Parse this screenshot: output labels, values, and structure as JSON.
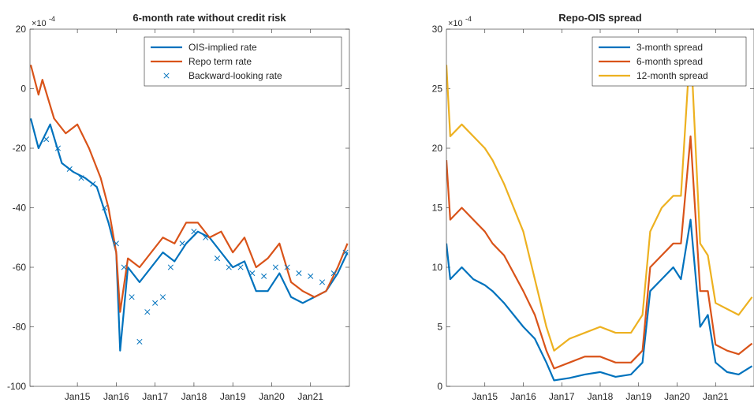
{
  "chart_data": [
    {
      "type": "line",
      "title": "6-month rate without credit risk",
      "y_exponent": {
        "base": "×10",
        "power": "-4"
      },
      "xlim": [
        2013.78,
        2022.0
      ],
      "xticks": [
        {
          "value": 2015,
          "label": "Jan15"
        },
        {
          "value": 2016,
          "label": "Jan16"
        },
        {
          "value": 2017,
          "label": "Jan17"
        },
        {
          "value": 2018,
          "label": "Jan18"
        },
        {
          "value": 2019,
          "label": "Jan19"
        },
        {
          "value": 2020,
          "label": "Jan20"
        },
        {
          "value": 2021,
          "label": "Jan21"
        }
      ],
      "ylim": [
        -100,
        20
      ],
      "yticks": [
        -100,
        -80,
        -60,
        -40,
        -20,
        0,
        20
      ],
      "legend": "top-right",
      "series": [
        {
          "name": "OIS-implied rate",
          "color": "#0072BD",
          "style": "line",
          "x": [
            2013.8,
            2014.0,
            2014.3,
            2014.6,
            2014.9,
            2015.2,
            2015.5,
            2015.8,
            2016.0,
            2016.1,
            2016.3,
            2016.6,
            2016.9,
            2017.2,
            2017.5,
            2017.8,
            2018.1,
            2018.4,
            2018.7,
            2019.0,
            2019.3,
            2019.6,
            2019.9,
            2020.2,
            2020.5,
            2020.8,
            2021.1,
            2021.4,
            2021.7,
            2021.95
          ],
          "values": [
            -10,
            -20,
            -12,
            -25,
            -28,
            -30,
            -33,
            -45,
            -55,
            -88,
            -60,
            -65,
            -60,
            -55,
            -58,
            -52,
            -48,
            -50,
            -55,
            -60,
            -58,
            -68,
            -68,
            -62,
            -70,
            -72,
            -70,
            -68,
            -62,
            -55
          ]
        },
        {
          "name": "Repo term rate",
          "color": "#D95319",
          "style": "line",
          "x": [
            2013.8,
            2014.0,
            2014.1,
            2014.4,
            2014.7,
            2015.0,
            2015.3,
            2015.6,
            2015.8,
            2016.0,
            2016.1,
            2016.3,
            2016.6,
            2016.9,
            2017.2,
            2017.5,
            2017.8,
            2018.1,
            2018.4,
            2018.7,
            2019.0,
            2019.3,
            2019.6,
            2019.9,
            2020.2,
            2020.5,
            2020.8,
            2021.1,
            2021.4,
            2021.7,
            2021.95
          ],
          "values": [
            8,
            -2,
            3,
            -10,
            -15,
            -12,
            -20,
            -30,
            -40,
            -55,
            -75,
            -57,
            -60,
            -55,
            -50,
            -52,
            -45,
            -45,
            -50,
            -48,
            -55,
            -50,
            -60,
            -57,
            -52,
            -65,
            -68,
            -70,
            -68,
            -60,
            -52
          ]
        },
        {
          "name": "Backward-looking rate",
          "color": "#0072BD",
          "style": "marker",
          "x": [
            2014.2,
            2014.5,
            2014.8,
            2015.1,
            2015.4,
            2015.7,
            2016.0,
            2016.2,
            2016.4,
            2016.6,
            2016.8,
            2017.0,
            2017.2,
            2017.4,
            2017.7,
            2018.0,
            2018.3,
            2018.6,
            2018.9,
            2019.2,
            2019.5,
            2019.8,
            2020.1,
            2020.4,
            2020.7,
            2021.0,
            2021.3,
            2021.6,
            2021.9
          ],
          "values": [
            -17,
            -20,
            -27,
            -30,
            -32,
            -40,
            -52,
            -60,
            -70,
            -85,
            -75,
            -72,
            -70,
            -60,
            -52,
            -48,
            -50,
            -57,
            -60,
            -60,
            -62,
            -63,
            -60,
            -60,
            -62,
            -63,
            -65,
            -62,
            -55
          ]
        }
      ]
    },
    {
      "type": "line",
      "title": "Repo-OIS spread",
      "y_exponent": {
        "base": "×10",
        "power": "-4"
      },
      "xlim": [
        2014.0,
        2022.0
      ],
      "xticks": [
        {
          "value": 2015,
          "label": "Jan15"
        },
        {
          "value": 2016,
          "label": "Jan16"
        },
        {
          "value": 2017,
          "label": "Jan17"
        },
        {
          "value": 2018,
          "label": "Jan18"
        },
        {
          "value": 2019,
          "label": "Jan19"
        },
        {
          "value": 2020,
          "label": "Jan20"
        },
        {
          "value": 2021,
          "label": "Jan21"
        }
      ],
      "ylim": [
        0,
        30
      ],
      "yticks": [
        0,
        5,
        10,
        15,
        20,
        25,
        30
      ],
      "legend": "top-right",
      "x": [
        2014.0,
        2014.1,
        2014.4,
        2014.7,
        2015.0,
        2015.2,
        2015.5,
        2016.0,
        2016.3,
        2016.6,
        2016.8,
        2017.2,
        2017.6,
        2018.0,
        2018.4,
        2018.8,
        2019.1,
        2019.3,
        2019.6,
        2019.9,
        2020.1,
        2020.35,
        2020.6,
        2020.8,
        2021.0,
        2021.3,
        2021.6,
        2021.95
      ],
      "series": [
        {
          "name": "3-month spread",
          "color": "#0072BD",
          "style": "line",
          "values": [
            12,
            9,
            10,
            9,
            8.5,
            8,
            7,
            5,
            4,
            2,
            0.5,
            0.7,
            1,
            1.2,
            0.8,
            1,
            2,
            8,
            9,
            10,
            9,
            14,
            5,
            6,
            2,
            1.2,
            1,
            1.7
          ]
        },
        {
          "name": "6-month spread",
          "color": "#D95319",
          "style": "line",
          "values": [
            19,
            14,
            15,
            14,
            13,
            12,
            11,
            8,
            6,
            3,
            1.5,
            2,
            2.5,
            2.5,
            2,
            2,
            3,
            10,
            11,
            12,
            12,
            21,
            8,
            8,
            3.5,
            3,
            2.7,
            3.6
          ]
        },
        {
          "name": "12-month spread",
          "color": "#EDB120",
          "style": "line",
          "values": [
            27,
            21,
            22,
            21,
            20,
            19,
            17,
            13,
            9,
            5,
            3,
            4,
            4.5,
            5,
            4.5,
            4.5,
            6,
            13,
            15,
            16,
            16,
            29,
            12,
            11,
            7,
            6.5,
            6,
            7.5
          ]
        }
      ]
    }
  ]
}
